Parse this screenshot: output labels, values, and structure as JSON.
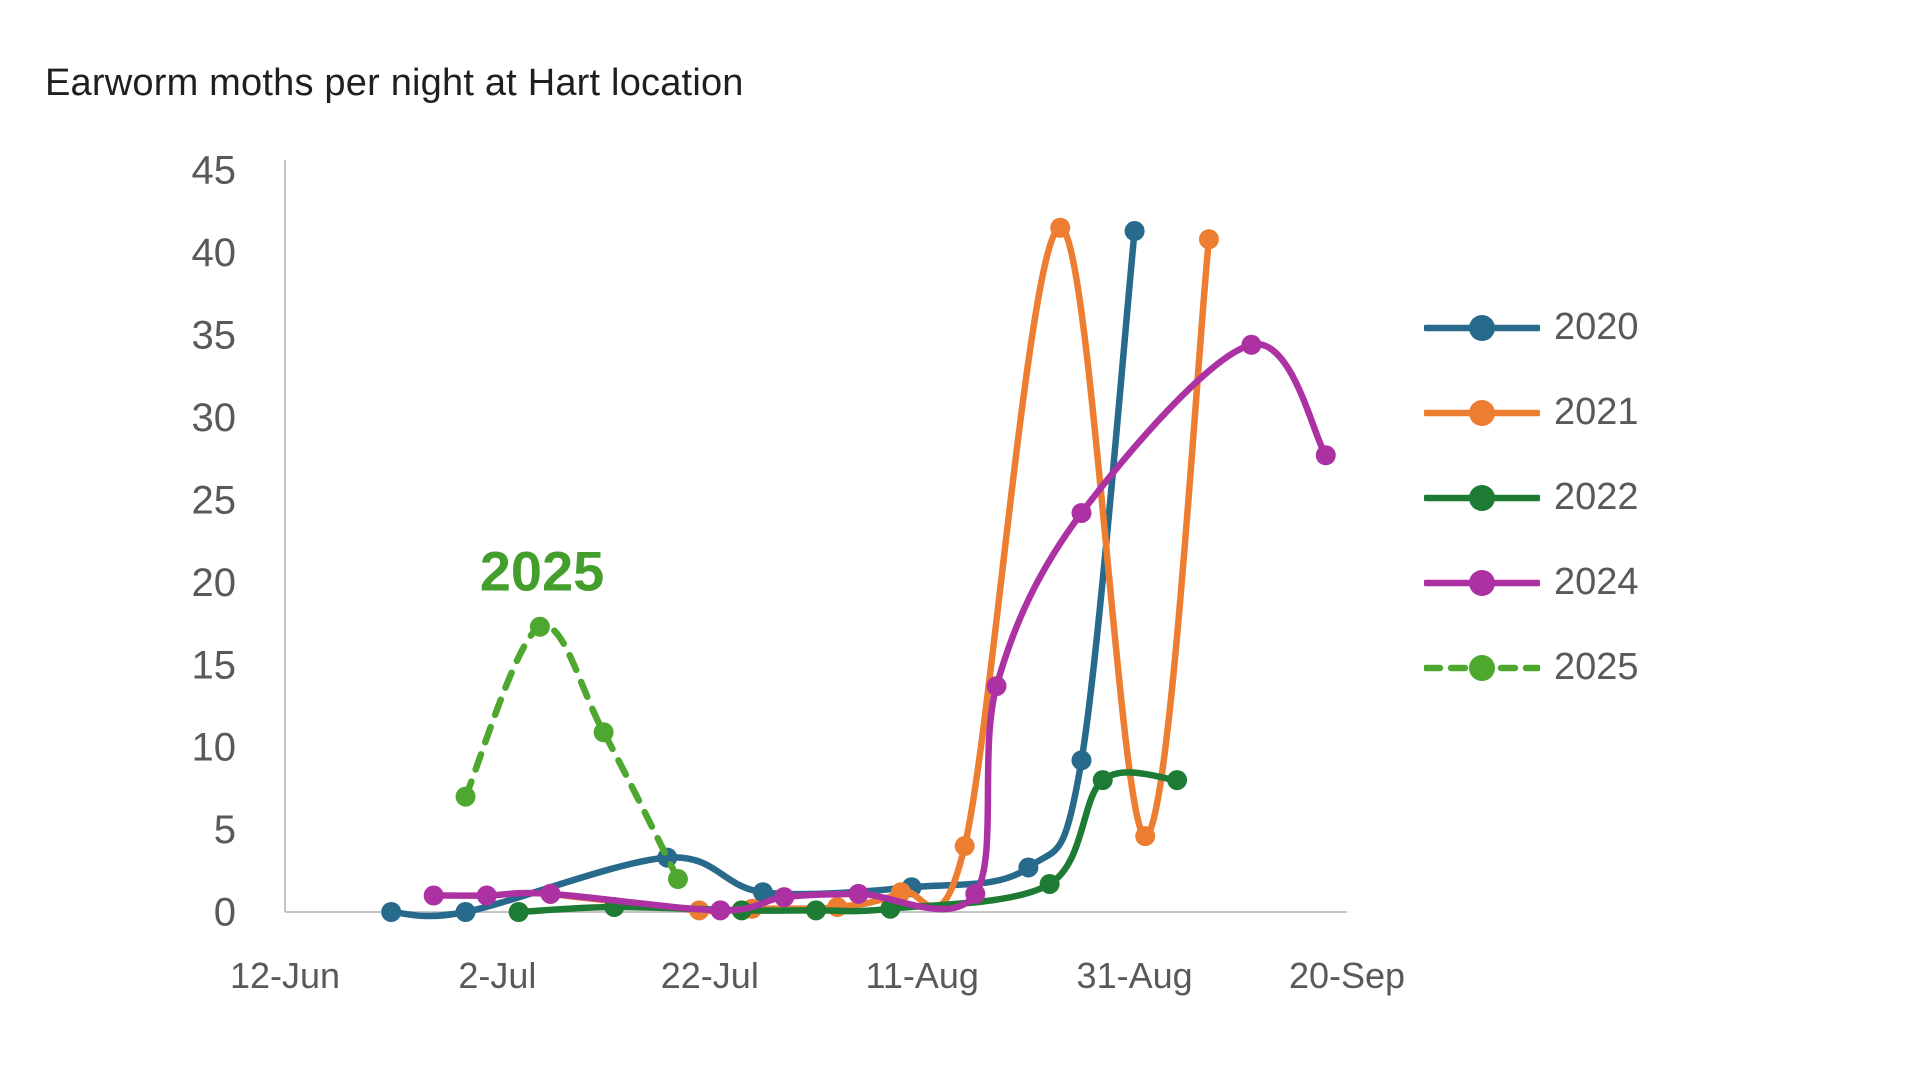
{
  "chart_data": {
    "type": "line",
    "title": "Earworm moths per night at Hart location",
    "grid": false,
    "legend_position": "right",
    "x_axis": {
      "tick_labels": [
        "12-Jun",
        "2-Jul",
        "22-Jul",
        "11-Aug",
        "31-Aug",
        "20-Sep"
      ],
      "tick_interval_days": 20,
      "range_days": [
        0,
        100
      ]
    },
    "y_axis": {
      "ticks": [
        0,
        5,
        10,
        15,
        20,
        25,
        30,
        35,
        40,
        45
      ],
      "min": 0,
      "max": 45
    },
    "annotation": {
      "text": "2025",
      "day": 24.2,
      "value": 19.5,
      "color": "#449E2C"
    },
    "colors": {
      "axis_line": "#C6C6C6",
      "tick_label": "#595959",
      "title_text": "#1F1F1F"
    },
    "series": [
      {
        "name": "2020",
        "color": "#276A8C",
        "dashed": false,
        "points": [
          {
            "date": "22-Jun",
            "day": 10,
            "value": 0
          },
          {
            "date": "29-Jun",
            "day": 17,
            "value": 0
          },
          {
            "date": "18-Jul",
            "day": 36,
            "value": 3.3
          },
          {
            "date": "27-Jul",
            "day": 45,
            "value": 1.2
          },
          {
            "date": "10-Aug",
            "day": 59,
            "value": 1.5
          },
          {
            "date": "21-Aug",
            "day": 70,
            "value": 2.7
          },
          {
            "date": "26-Aug",
            "day": 75,
            "value": 9.2
          },
          {
            "date": "31-Aug",
            "day": 80,
            "value": 41.3
          }
        ]
      },
      {
        "name": "2021",
        "color": "#ED7D31",
        "dashed": false,
        "points": [
          {
            "date": "7-Jul",
            "day": 25,
            "value": 1.1
          },
          {
            "date": "21-Jul",
            "day": 39,
            "value": 0.1
          },
          {
            "date": "26-Jul",
            "day": 44,
            "value": 0.2
          },
          {
            "date": "3-Aug",
            "day": 52,
            "value": 0.3
          },
          {
            "date": "9-Aug",
            "day": 58,
            "value": 1.2
          },
          {
            "date": "15-Aug",
            "day": 64,
            "value": 4.0
          },
          {
            "date": "24-Aug",
            "day": 73,
            "value": 41.5
          },
          {
            "date": "1-Sep",
            "day": 81,
            "value": 4.6
          },
          {
            "date": "7-Sep",
            "day": 87,
            "value": 40.8
          }
        ]
      },
      {
        "name": "2022",
        "color": "#1E7B33",
        "dashed": false,
        "points": [
          {
            "date": "4-Jul",
            "day": 22,
            "value": 0
          },
          {
            "date": "13-Jul",
            "day": 31,
            "value": 0.3
          },
          {
            "date": "25-Jul",
            "day": 43,
            "value": 0.1
          },
          {
            "date": "1-Aug",
            "day": 50,
            "value": 0.1
          },
          {
            "date": "8-Aug",
            "day": 57,
            "value": 0.2
          },
          {
            "date": "23-Aug",
            "day": 72,
            "value": 1.7
          },
          {
            "date": "28-Aug",
            "day": 77,
            "value": 8.0
          },
          {
            "date": "4-Sep",
            "day": 84,
            "value": 8.0
          }
        ]
      },
      {
        "name": "2024",
        "color": "#AC32A4",
        "dashed": false,
        "points": [
          {
            "date": "26-Jun",
            "day": 14,
            "value": 1.0
          },
          {
            "date": "1-Jul",
            "day": 19,
            "value": 1.0
          },
          {
            "date": "7-Jul",
            "day": 25,
            "value": 1.1
          },
          {
            "date": "23-Jul",
            "day": 41,
            "value": 0.1
          },
          {
            "date": "29-Jul",
            "day": 47,
            "value": 0.9
          },
          {
            "date": "5-Aug",
            "day": 54,
            "value": 1.1
          },
          {
            "date": "16-Aug",
            "day": 65,
            "value": 1.1
          },
          {
            "date": "18-Aug",
            "day": 67,
            "value": 13.7
          },
          {
            "date": "26-Aug",
            "day": 75,
            "value": 24.2
          },
          {
            "date": "11-Sep",
            "day": 91,
            "value": 34.4
          },
          {
            "date": "18-Sep",
            "day": 98,
            "value": 27.7
          }
        ]
      },
      {
        "name": "2025",
        "color": "#4EA72E",
        "dashed": true,
        "points": [
          {
            "date": "29-Jun",
            "day": 17,
            "value": 7.0
          },
          {
            "date": "6-Jul",
            "day": 24,
            "value": 17.3
          },
          {
            "date": "12-Jul",
            "day": 30,
            "value": 10.9
          },
          {
            "date": "19-Jul",
            "day": 37,
            "value": 2.0
          }
        ]
      }
    ]
  }
}
